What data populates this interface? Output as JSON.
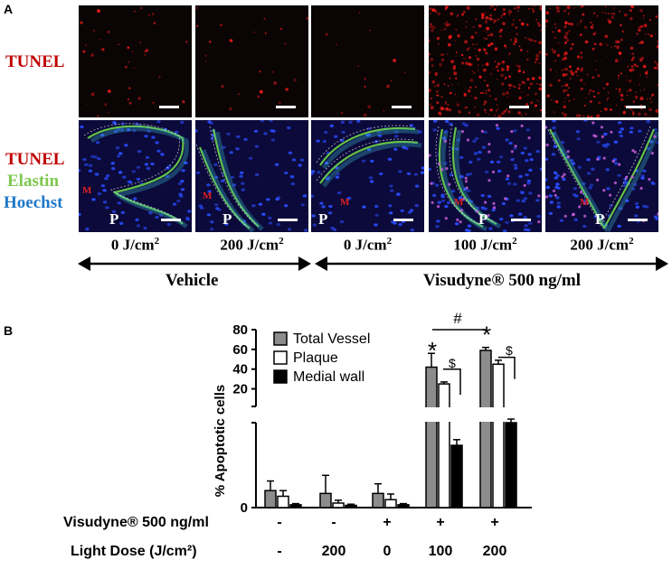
{
  "panel_a": {
    "letter": "A",
    "row_labels": {
      "top": "TUNEL",
      "bottom": [
        "TUNEL",
        "Elastin",
        "Hoechst"
      ]
    },
    "colors": {
      "tunel": "#c00000",
      "elastin": "#7ec850",
      "hoechst": "#1f78c8"
    },
    "images": [
      {
        "dose": "0 J/cm",
        "sup": "2",
        "p": "P",
        "m": "M"
      },
      {
        "dose": "200 J/cm",
        "sup": "2",
        "p": "P",
        "m": "M"
      },
      {
        "dose": "0 J/cm",
        "sup": "2",
        "p": "P",
        "m": "M"
      },
      {
        "dose": "100 J/cm",
        "sup": "2",
        "p": "P",
        "m": "M"
      },
      {
        "dose": "200 J/cm",
        "sup": "2",
        "p": "P",
        "m": "M"
      }
    ],
    "groups": {
      "vehicle": "Vehicle",
      "visudyne": "Visudyne® 500 ng/ml"
    }
  },
  "panel_b": {
    "letter": "B",
    "table": {
      "row1_label": "Visudyne® 500 ng/ml",
      "row1_values": [
        "-",
        "-",
        "+",
        "+",
        "+"
      ],
      "row2_label": "Light Dose (J/cm²)",
      "row2_values": [
        "-",
        "200",
        "0",
        "100",
        "200"
      ]
    },
    "annotations": {
      "hash": "#",
      "star": "*",
      "dollar": "$"
    }
  },
  "chart_data": {
    "type": "bar",
    "title": "",
    "xlabel": "",
    "ylabel": "% Apoptotic cells",
    "y_axis": "broken",
    "ylim_lower": [
      0,
      15
    ],
    "ylim_upper": [
      15,
      85
    ],
    "yticks": [
      "80",
      "60",
      "40",
      "20",
      "0"
    ],
    "legend_position": "top-left",
    "categories": [
      "- / -",
      "- / 200",
      "+ / 0",
      "+ / 100",
      "+ / 200"
    ],
    "series": [
      {
        "name": "Total Vessel",
        "color": "#8c8c8c",
        "values": [
          3.0,
          2.5,
          2.5,
          42,
          59
        ],
        "errors": [
          1.7,
          3.2,
          1.7,
          14,
          3
        ]
      },
      {
        "name": "Plaque",
        "color": "#ffffff",
        "values": [
          2.0,
          0.8,
          1.4,
          25,
          45
        ],
        "errors": [
          1.0,
          0.5,
          1.0,
          2,
          4
        ]
      },
      {
        "name": "Medial wall",
        "color": "#000000",
        "values": [
          0.5,
          0.4,
          0.5,
          11,
          15
        ],
        "errors": [
          0.2,
          0.2,
          0.2,
          1,
          12
        ]
      }
    ]
  }
}
